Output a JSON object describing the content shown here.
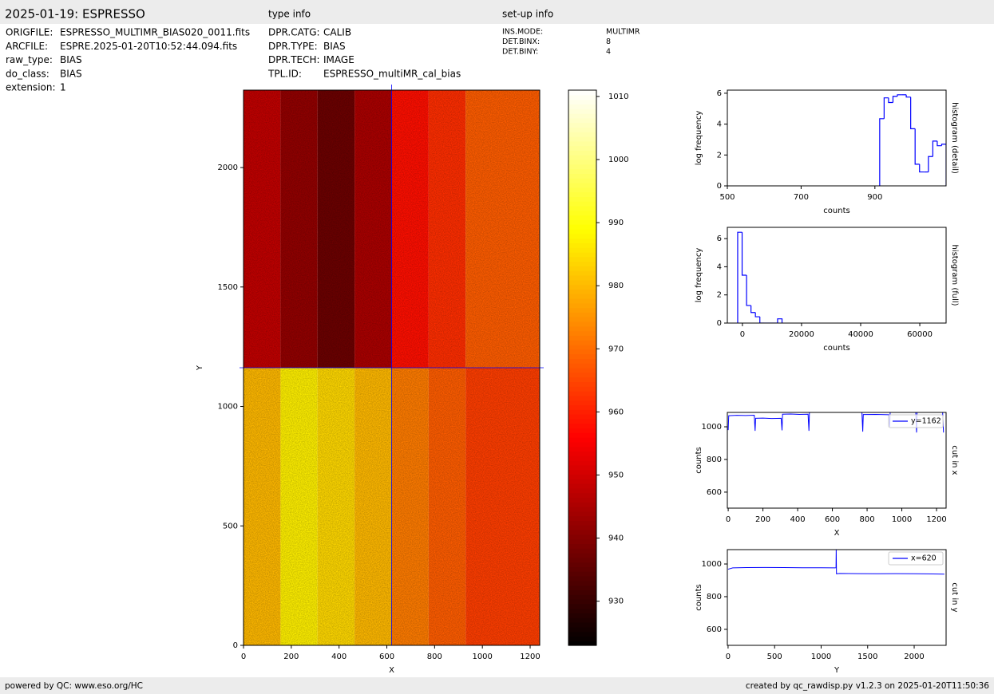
{
  "header": {
    "title": "2025-01-19: ESPRESSO",
    "type_info": "type info",
    "setup_info": "set-up info"
  },
  "file_info": [
    [
      "ORIGFILE:",
      "ESPRESSO_MULTIMR_BIAS020_0011.fits"
    ],
    [
      "ARCFILE:",
      "ESPRE.2025-01-20T10:52:44.094.fits"
    ],
    [
      "raw_type:",
      "BIAS"
    ],
    [
      "do_class:",
      "BIAS"
    ],
    [
      "extension:",
      "1"
    ]
  ],
  "type_info": [
    [
      "DPR.CATG:",
      "CALIB"
    ],
    [
      "DPR.TYPE:",
      "BIAS"
    ],
    [
      "DPR.TECH:",
      "IMAGE"
    ],
    [
      "TPL.ID:",
      "ESPRESSO_multiMR_cal_bias"
    ]
  ],
  "setup_info": [
    [
      "INS.MODE:",
      "MULTIMR"
    ],
    [
      "DET.BINX:",
      "8"
    ],
    [
      "DET.BINY:",
      "4"
    ]
  ],
  "footer": {
    "left": "powered by QC: www.eso.org/HC",
    "right": "created by qc_rawdisp.py v1.2.3 on 2025-01-20T11:50:36"
  },
  "chart_data": [
    {
      "type": "heatmap",
      "x_label": "X",
      "y_label": "Y",
      "x_edges": [
        0,
        155,
        310,
        465,
        620,
        775,
        930,
        1240
      ],
      "y_edges": [
        0,
        1162,
        2324
      ],
      "values": [
        [
          980,
          987,
          984,
          980,
          972,
          968,
          964
        ],
        [
          948,
          942,
          937,
          945,
          958,
          962,
          968
        ]
      ],
      "xlim": [
        0,
        1240
      ],
      "ylim": [
        0,
        2324
      ],
      "xticks": [
        0,
        200,
        400,
        600,
        800,
        1000,
        1200
      ],
      "yticks": [
        0,
        500,
        1000,
        1500,
        2000
      ],
      "crosshair": {
        "x": 620,
        "y": 1162,
        "color": "#0000ff"
      },
      "colormap": "hot",
      "clim": [
        923,
        1011
      ],
      "colorbar_ticks": [
        930,
        940,
        950,
        960,
        970,
        980,
        990,
        1000,
        1010
      ]
    },
    {
      "type": "histogram",
      "title": "histogram (detail)",
      "x_label": "counts",
      "y_label": "log frequency",
      "bins": [
        913,
        925,
        937,
        949,
        961,
        973,
        985,
        997,
        1009,
        1021,
        1033,
        1045,
        1057,
        1069,
        1081,
        1093
      ],
      "counts": [
        4.35,
        5.7,
        5.4,
        5.8,
        5.9,
        5.9,
        5.75,
        3.7,
        1.4,
        0.9,
        0.9,
        1.9,
        2.9,
        2.6,
        2.7
      ],
      "color": "#0000ff",
      "xlim": [
        500,
        1093
      ],
      "ylim": [
        0,
        6.2
      ],
      "xticks": [
        500,
        700,
        900
      ],
      "yticks": [
        0,
        2,
        4,
        6
      ]
    },
    {
      "type": "histogram",
      "title": "histogram (full)",
      "x_label": "counts",
      "y_label": "log frequency",
      "bins": [
        -1600,
        -100,
        1400,
        2900,
        4400,
        5900,
        7400,
        8900,
        10400,
        11900,
        13400
      ],
      "counts": [
        6.45,
        3.4,
        1.25,
        0.75,
        0.45,
        0,
        0,
        0,
        0,
        0.3
      ],
      "color": "#0000ff",
      "xlim": [
        -5100,
        68900
      ],
      "ylim": [
        0,
        6.8
      ],
      "xticks": [
        0,
        20000,
        40000,
        60000
      ],
      "yticks": [
        0,
        2,
        4,
        6
      ]
    },
    {
      "type": "line",
      "title": "cut in x",
      "x_label": "X",
      "y_label": "counts",
      "x": [
        0,
        3,
        50,
        100,
        150,
        155,
        158,
        200,
        250,
        305,
        310,
        313,
        360,
        410,
        460,
        465,
        468,
        520,
        600,
        700,
        770,
        775,
        778,
        850,
        925,
        930,
        933,
        1000,
        1080,
        1085,
        1088,
        1150,
        1235,
        1240
      ],
      "series": [
        {
          "name": "y=1162",
          "color": "#0000ff",
          "values": [
            980,
            1068,
            1070,
            1069,
            1071,
            975,
            1052,
            1053,
            1051,
            1052,
            978,
            1077,
            1078,
            1076,
            1077,
            975,
            1095,
            1096,
            1095,
            1096,
            1094,
            970,
            1075,
            1076,
            1074,
            1000,
            1090,
            1091,
            1089,
            965,
            1090,
            1091,
            1090,
            965
          ]
        }
      ],
      "xlim": [
        -5,
        1255
      ],
      "ylim": [
        502,
        1088
      ],
      "xticks": [
        0,
        200,
        400,
        600,
        800,
        1000,
        1200
      ],
      "yticks": [
        600,
        800,
        1000
      ],
      "legend": "upper right"
    },
    {
      "type": "line",
      "title": "cut in y",
      "x_label": "Y",
      "y_label": "counts",
      "x": [
        0,
        50,
        200,
        400,
        600,
        800,
        1000,
        1150,
        1160,
        1162,
        1165,
        1200,
        1400,
        1600,
        1800,
        2000,
        2200,
        2324
      ],
      "series": [
        {
          "name": "x=620",
          "color": "#0000ff",
          "values": [
            968,
            976,
            978,
            979,
            978,
            977,
            977,
            976,
            977,
            1088,
            940,
            942,
            941,
            940,
            941,
            940,
            939,
            938
          ]
        }
      ],
      "xlim": [
        -8,
        2343
      ],
      "ylim": [
        502,
        1088
      ],
      "xticks": [
        0,
        500,
        1000,
        1500,
        2000
      ],
      "yticks": [
        600,
        800,
        1000
      ],
      "legend": "upper right"
    }
  ]
}
